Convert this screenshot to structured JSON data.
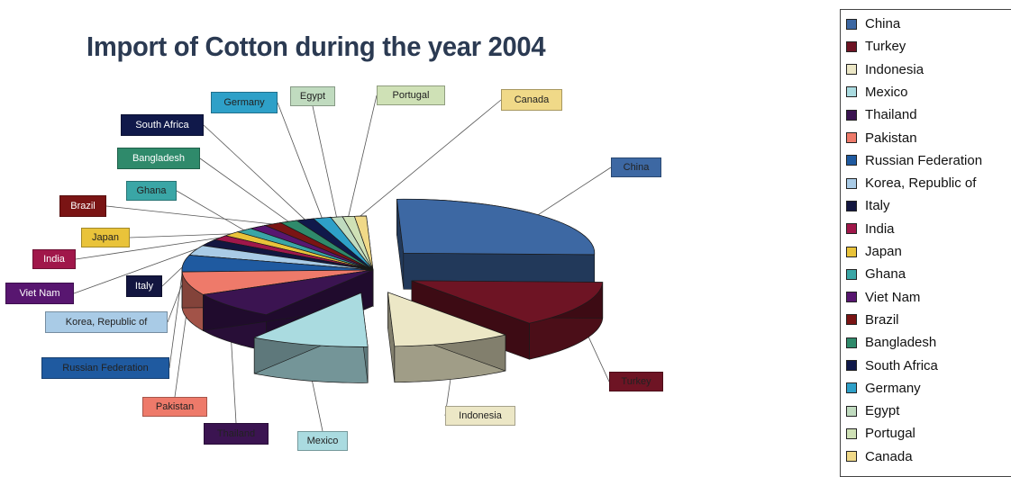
{
  "chart_data": {
    "type": "pie",
    "title": "Import of Cotton during the year 2004",
    "categories": [
      "China",
      "Turkey",
      "Indonesia",
      "Mexico",
      "Thailand",
      "Pakistan",
      "Russian Federation",
      "Korea, Republic of",
      "Italy",
      "India",
      "Japan",
      "Ghana",
      "Viet Nam",
      "Brazil",
      "Bangladesh",
      "South Africa",
      "Germany",
      "Egypt",
      "Portugal",
      "Canada"
    ],
    "legend_labels": [
      "China",
      "Turkey",
      "Indonesia",
      "Mexico",
      "Thailand",
      "Pakistan",
      "Russian Federation",
      "Korea, Republic of",
      "Italy",
      "India",
      "Japan",
      "Ghana",
      "Viet Nam",
      "Brazil",
      "Bangladesh",
      "South Africa",
      "Germany",
      "Egypt",
      "Portugal",
      "Canada"
    ],
    "callout_labels": [
      "China",
      "Turkey",
      "Indonesia",
      "Mexico",
      "Thailand",
      "Pakistan",
      "Russian Federation",
      "Korea, Republic of",
      "Italy",
      "India",
      "Japan",
      "Ghana",
      "Viet Nam",
      "Brazil",
      "Bangladesh",
      "South Africa",
      "Germany",
      "Egypt",
      "Portugal",
      "Canada"
    ],
    "values": [
      26,
      14,
      10,
      10,
      8,
      7,
      5,
      3,
      2,
      1.5,
      1.5,
      1.5,
      1.5,
      1.5,
      1.5,
      1.5,
      1.5,
      1,
      1,
      1
    ],
    "colors": [
      "#3d68a3",
      "#6e1424",
      "#ece7c6",
      "#aadbe0",
      "#3b1451",
      "#ee7a6a",
      "#1f5aa0",
      "#a9cbe6",
      "#131640",
      "#a0174a",
      "#e9c33a",
      "#3aa6a6",
      "#581670",
      "#7a1414",
      "#2f8a6b",
      "#10194a",
      "#2ea0c8",
      "#c0dbbf",
      "#cfe1b6",
      "#f0d988"
    ],
    "legend": "right"
  }
}
